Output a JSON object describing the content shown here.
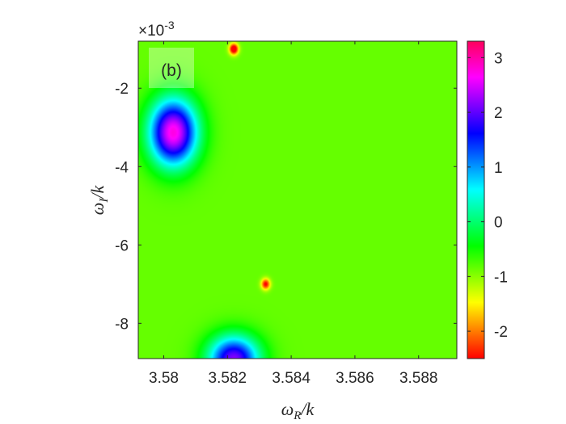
{
  "chart_data": {
    "type": "heatmap",
    "panel_label": "(b)",
    "title": "",
    "xlabel": {
      "base": "ω",
      "sub": "R",
      "suffix": "/k"
    },
    "ylabel": {
      "base": "ω",
      "sub": "I",
      "suffix": "/k"
    },
    "xlim": [
      3.5792,
      3.5892
    ],
    "ylim": [
      -0.0089,
      -0.0008
    ],
    "x_ticks": [
      3.58,
      3.582,
      3.584,
      3.586,
      3.588
    ],
    "x_tick_labels": [
      "3.58",
      "3.582",
      "3.584",
      "3.586",
      "3.588"
    ],
    "y_ticks": [
      -0.002,
      -0.004,
      -0.006,
      -0.008
    ],
    "y_tick_labels": [
      "-2",
      "-4",
      "-6",
      "-8"
    ],
    "y_exponent": {
      "prefix": "×10",
      "power": "-3"
    },
    "colorbar": {
      "limits": [
        -2.5,
        3.3
      ],
      "ticks": [
        3,
        2,
        1,
        0,
        -1,
        -2
      ],
      "tick_labels": [
        "3",
        "2",
        "1",
        "0",
        "-1",
        "-2"
      ],
      "colormap": "hsv"
    },
    "background_level": -0.85,
    "features": [
      {
        "x": 3.5803,
        "y": -0.00313,
        "amplitude": 3.6,
        "width_x": 0.00075,
        "width_y": 0.00085
      },
      {
        "x": 3.5822,
        "y": -0.00892,
        "amplitude": 3.0,
        "width_x": 0.0008,
        "width_y": 0.0006
      },
      {
        "x": 3.5822,
        "y": -0.001,
        "amplitude": -2.2,
        "width_x": 0.00014,
        "width_y": 0.00014
      },
      {
        "x": 3.5832,
        "y": -0.007,
        "amplitude": -1.7,
        "width_x": 0.00014,
        "width_y": 0.00014
      }
    ]
  }
}
